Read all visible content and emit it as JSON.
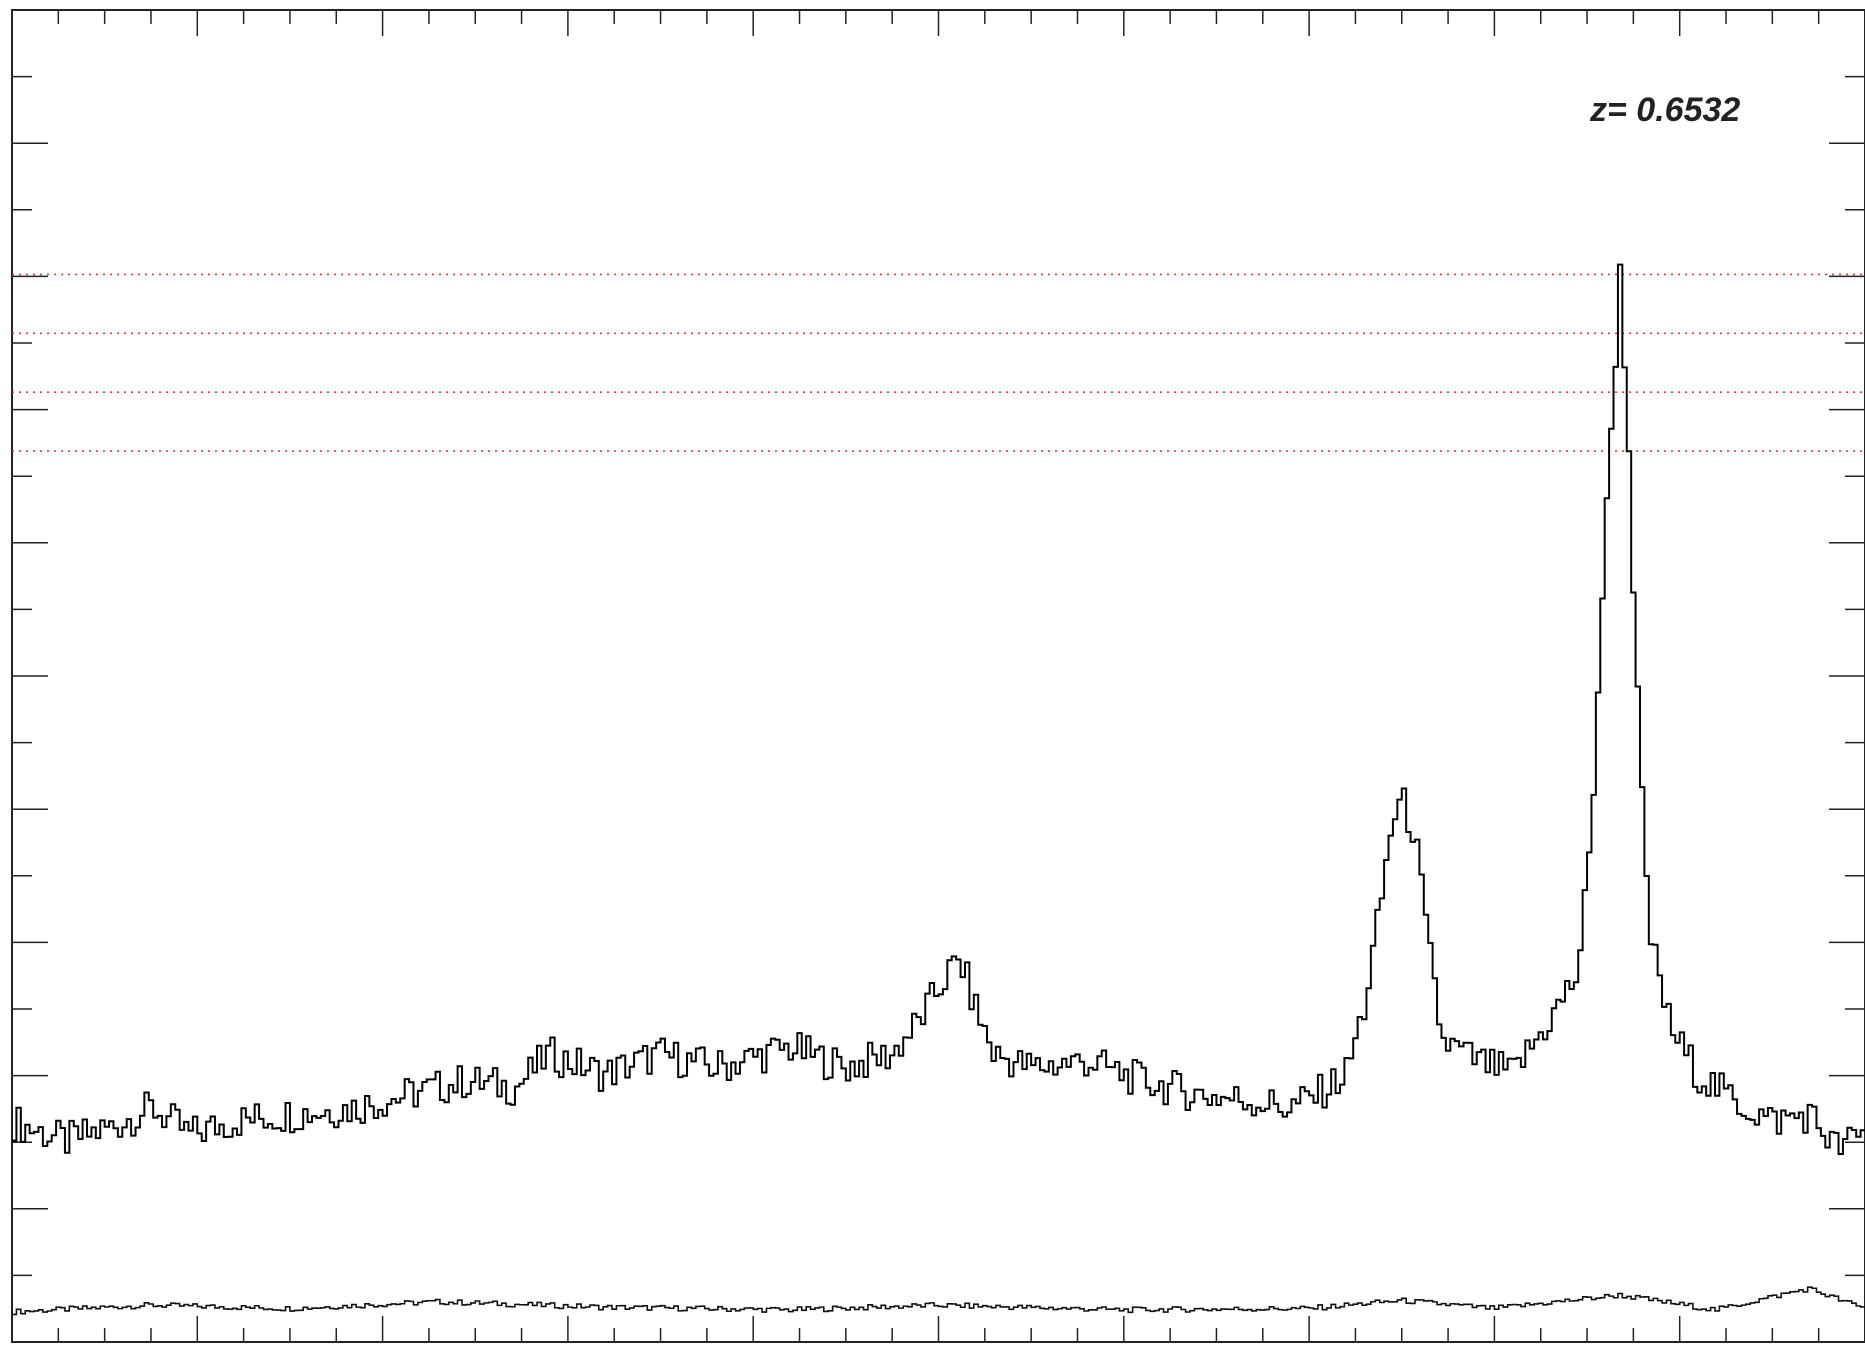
{
  "chart_data": {
    "type": "line",
    "annotation": "z=  0.6532",
    "x_range": [
      0,
      1
    ],
    "ylim": [
      -0.4,
      19.5
    ],
    "reference_lines": [
      15.55,
      14.67,
      13.79,
      12.91
    ],
    "primary_series": [
      {
        "x": 0.0,
        "y": 2.9
      },
      {
        "x": 0.029,
        "y": 2.6
      },
      {
        "x": 0.053,
        "y": 2.8
      },
      {
        "x": 0.076,
        "y": 3.1
      },
      {
        "x": 0.096,
        "y": 2.7
      },
      {
        "x": 0.12,
        "y": 2.9
      },
      {
        "x": 0.15,
        "y": 3.0
      },
      {
        "x": 0.185,
        "y": 3.1
      },
      {
        "x": 0.215,
        "y": 3.3
      },
      {
        "x": 0.245,
        "y": 3.5
      },
      {
        "x": 0.272,
        "y": 3.4
      },
      {
        "x": 0.29,
        "y": 3.9
      },
      {
        "x": 0.32,
        "y": 3.6
      },
      {
        "x": 0.35,
        "y": 3.9
      },
      {
        "x": 0.38,
        "y": 3.7
      },
      {
        "x": 0.42,
        "y": 4.0
      },
      {
        "x": 0.45,
        "y": 3.7
      },
      {
        "x": 0.475,
        "y": 3.9
      },
      {
        "x": 0.49,
        "y": 4.4
      },
      {
        "x": 0.505,
        "y": 5.1
      },
      {
        "x": 0.512,
        "y": 5.3
      },
      {
        "x": 0.52,
        "y": 4.6
      },
      {
        "x": 0.53,
        "y": 3.9
      },
      {
        "x": 0.55,
        "y": 3.7
      },
      {
        "x": 0.58,
        "y": 3.8
      },
      {
        "x": 0.61,
        "y": 3.5
      },
      {
        "x": 0.64,
        "y": 3.3
      },
      {
        "x": 0.67,
        "y": 3.2
      },
      {
        "x": 0.69,
        "y": 3.1
      },
      {
        "x": 0.705,
        "y": 3.3
      },
      {
        "x": 0.72,
        "y": 3.6
      },
      {
        "x": 0.73,
        "y": 4.6
      },
      {
        "x": 0.738,
        "y": 6.0
      },
      {
        "x": 0.745,
        "y": 7.4
      },
      {
        "x": 0.75,
        "y": 7.7
      },
      {
        "x": 0.757,
        "y": 7.2
      },
      {
        "x": 0.764,
        "y": 5.6
      },
      {
        "x": 0.772,
        "y": 4.1
      },
      {
        "x": 0.79,
        "y": 3.8
      },
      {
        "x": 0.81,
        "y": 3.6
      },
      {
        "x": 0.83,
        "y": 4.4
      },
      {
        "x": 0.845,
        "y": 5.1
      },
      {
        "x": 0.852,
        "y": 7.0
      },
      {
        "x": 0.858,
        "y": 10.6
      },
      {
        "x": 0.863,
        "y": 13.2
      },
      {
        "x": 0.868,
        "y": 15.6
      },
      {
        "x": 0.872,
        "y": 13.4
      },
      {
        "x": 0.877,
        "y": 9.4
      },
      {
        "x": 0.883,
        "y": 5.8
      },
      {
        "x": 0.895,
        "y": 4.3
      },
      {
        "x": 0.91,
        "y": 3.6
      },
      {
        "x": 0.93,
        "y": 3.2
      },
      {
        "x": 0.95,
        "y": 2.9
      },
      {
        "x": 0.97,
        "y": 3.0
      },
      {
        "x": 0.985,
        "y": 2.5
      },
      {
        "x": 1.0,
        "y": 2.7
      }
    ],
    "secondary_series": [
      {
        "x": 0.0,
        "y": 0.05
      },
      {
        "x": 0.075,
        "y": 0.15
      },
      {
        "x": 0.15,
        "y": 0.1
      },
      {
        "x": 0.23,
        "y": 0.2
      },
      {
        "x": 0.32,
        "y": 0.12
      },
      {
        "x": 0.42,
        "y": 0.08
      },
      {
        "x": 0.5,
        "y": 0.15
      },
      {
        "x": 0.6,
        "y": 0.08
      },
      {
        "x": 0.7,
        "y": 0.1
      },
      {
        "x": 0.75,
        "y": 0.22
      },
      {
        "x": 0.8,
        "y": 0.1
      },
      {
        "x": 0.868,
        "y": 0.3
      },
      {
        "x": 0.92,
        "y": 0.08
      },
      {
        "x": 0.97,
        "y": 0.4
      },
      {
        "x": 1.0,
        "y": 0.1
      }
    ]
  }
}
